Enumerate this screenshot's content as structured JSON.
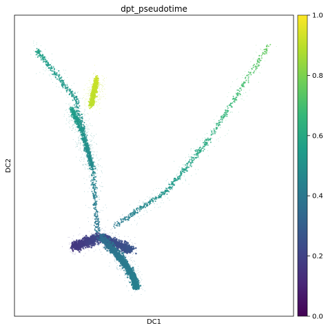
{
  "chart_data": {
    "type": "scatter",
    "title": "dpt_pseudotime",
    "xlabel": "DC1",
    "ylabel": "DC2",
    "grid": false,
    "xlim": [
      0,
      1
    ],
    "ylim": [
      0,
      1
    ],
    "colorbar": {
      "label": "",
      "colormap": [
        "#440154",
        "#482878",
        "#3e4989",
        "#31688e",
        "#26828e",
        "#1f9e89",
        "#35b779",
        "#6ece58",
        "#b5de2b",
        "#fde725"
      ],
      "range": [
        0,
        1
      ],
      "ticks": [
        0.0,
        0.2,
        0.4,
        0.6,
        0.8,
        1.0
      ],
      "tick_labels": [
        "0.0",
        "0.2",
        "0.4",
        "0.6",
        "0.8",
        "1.0"
      ]
    },
    "branches": [
      {
        "x": [
          0.21,
          0.31,
          0.42
        ],
        "y": [
          0.232,
          0.262,
          0.22
        ],
        "pseudotime": [
          0.16,
          0.22,
          0.26
        ]
      },
      {
        "x": [
          0.31,
          0.37,
          0.415,
          0.44
        ],
        "y": [
          0.262,
          0.205,
          0.15,
          0.095
        ],
        "pseudotime": [
          0.36,
          0.4,
          0.42,
          0.44
        ]
      },
      {
        "x": [
          0.3,
          0.28,
          0.22,
          0.08
        ],
        "y": [
          0.26,
          0.49,
          0.72,
          0.885
        ],
        "pseudotime": [
          0.38,
          0.47,
          0.52,
          0.57
        ]
      },
      {
        "x": [
          0.28,
          0.24,
          0.205
        ],
        "y": [
          0.49,
          0.62,
          0.69
        ],
        "pseudotime": [
          0.47,
          0.52,
          0.56
        ]
      },
      {
        "x": [
          0.36,
          0.55,
          0.7,
          0.91
        ],
        "y": [
          0.3,
          0.42,
          0.59,
          0.9
        ],
        "pseudotime": [
          0.4,
          0.53,
          0.62,
          0.76
        ]
      },
      {
        "x": [
          0.275,
          0.295
        ],
        "y": [
          0.7,
          0.79
        ],
        "pseudotime": [
          0.9,
          0.92
        ]
      }
    ]
  }
}
